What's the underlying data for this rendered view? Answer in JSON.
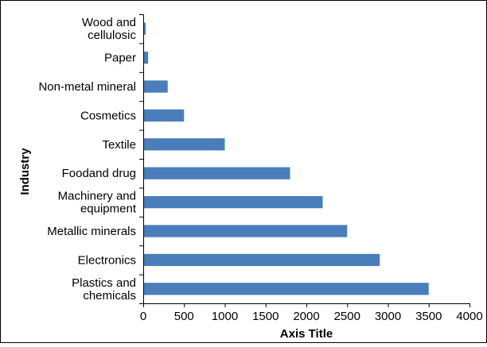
{
  "chart_data": {
    "type": "bar",
    "orientation": "horizontal",
    "categories": [
      "Wood and cellulosic",
      "Paper",
      "Non-metal mineral",
      "Cosmetics",
      "Textile",
      "Foodand drug",
      "Machinery and equipment",
      "Metallic minerals",
      "Electronics",
      "Plastics and chemicals"
    ],
    "category_lines": [
      [
        "Wood and",
        "cellulosic"
      ],
      [
        "Paper"
      ],
      [
        "Non-metal mineral"
      ],
      [
        "Cosmetics"
      ],
      [
        "Textile"
      ],
      [
        "Foodand drug"
      ],
      [
        "Machinery and",
        "equipment"
      ],
      [
        "Metallic minerals"
      ],
      [
        "Electronics"
      ],
      [
        "Plastics and",
        "chemicals"
      ]
    ],
    "values": [
      30,
      60,
      300,
      500,
      1000,
      1800,
      2200,
      2500,
      2900,
      3500
    ],
    "xlim": [
      0,
      4000
    ],
    "x_ticks": [
      "0",
      "500",
      "1000",
      "1500",
      "2000",
      "2500",
      "3000",
      "3500",
      "4000"
    ],
    "xlabel": "Axis Title",
    "ylabel": "Industry",
    "bar_color": "#4a7ebb",
    "grid": false,
    "legend": "none"
  }
}
